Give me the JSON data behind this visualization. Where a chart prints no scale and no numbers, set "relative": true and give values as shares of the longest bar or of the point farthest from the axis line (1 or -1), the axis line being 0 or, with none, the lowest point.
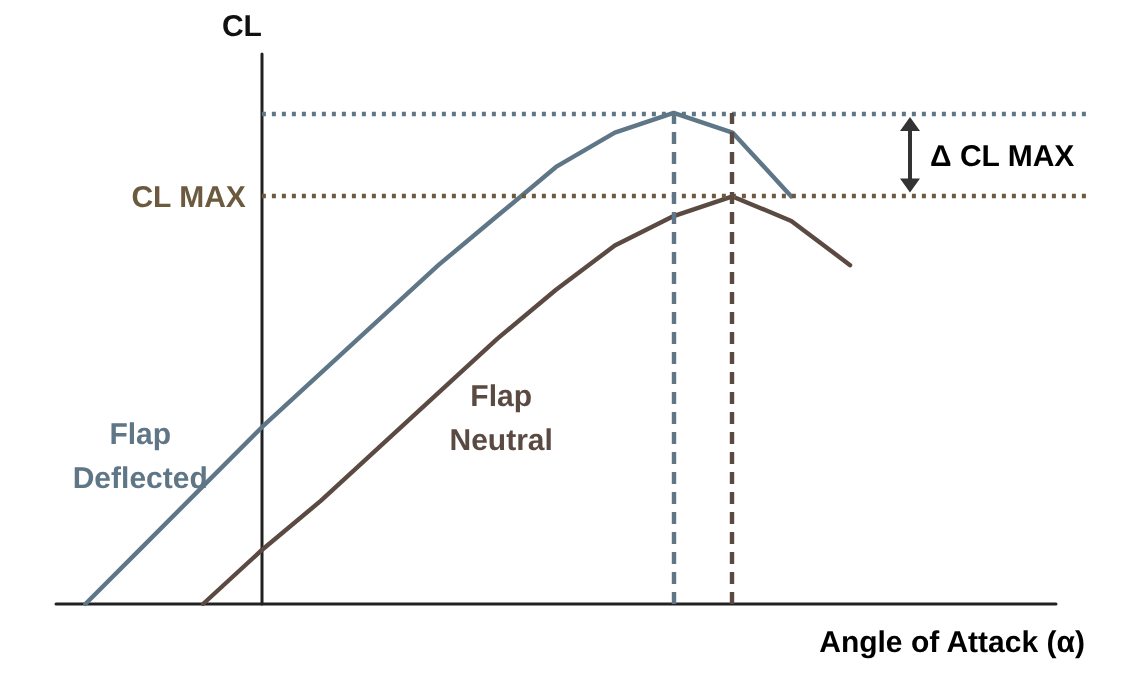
{
  "chart_data": {
    "type": "line",
    "relative": true,
    "xlabel": "Angle of Attack (α)",
    "ylabel": "CL",
    "categories": [
      null,
      null,
      null,
      null,
      null,
      null,
      null,
      null,
      null,
      null,
      null,
      null,
      null,
      null,
      null,
      null,
      null
    ],
    "grid": false,
    "legend": false,
    "marker": "none",
    "line_style": "solid",
    "series": [
      {
        "name": "Flap Deflected",
        "color": "#5f7687",
        "values": [
          0,
          0.12,
          0.24,
          0.36,
          0.47,
          0.58,
          0.69,
          0.79,
          0.89,
          0.96,
          1,
          0.96,
          0.83,
          null,
          null,
          null,
          null
        ]
      },
      {
        "name": "Flap Neutral",
        "color": "#5a4a42",
        "values": [
          null,
          null,
          0,
          0.11,
          0.21,
          0.32,
          0.43,
          0.54,
          0.64,
          0.73,
          0.79,
          0.83,
          0.78,
          0.69,
          null,
          null,
          null
        ]
      }
    ],
    "ref_lines": [
      {
        "axis": "y",
        "value": 1,
        "color": "#5f7687",
        "line_style": "dotted"
      },
      {
        "axis": "y",
        "value": 0.83,
        "label": "CL MAX",
        "color": "#6b5a3e",
        "line_style": "dotted"
      }
    ],
    "annotations": [
      "Δ CL MAX"
    ]
  }
}
